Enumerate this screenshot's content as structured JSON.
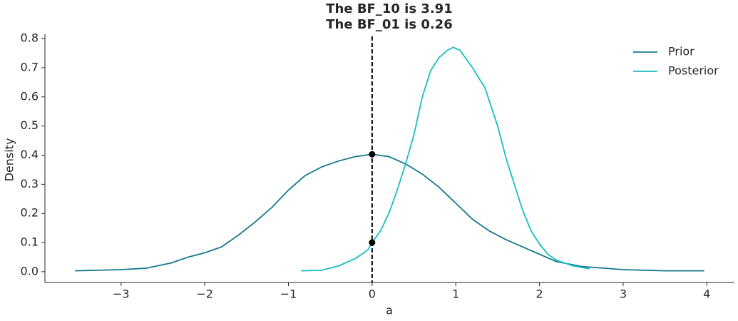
{
  "chart_data": {
    "type": "line",
    "title": [
      "The BF_10 is 3.91",
      "The BF_01 is 0.26"
    ],
    "xlabel": "a",
    "ylabel": "Density",
    "xlim": [
      -3.91,
      4.33
    ],
    "ylim": [
      -0.037,
      0.815
    ],
    "xticks": [
      {
        "value": -3,
        "label": "−3"
      },
      {
        "value": -2,
        "label": "−2"
      },
      {
        "value": -1,
        "label": "−1"
      },
      0,
      1,
      2,
      3,
      4
    ],
    "yticks": [
      {
        "value": 0,
        "label": "0.0"
      },
      0.1,
      0.2,
      0.3,
      0.4,
      0.5,
      0.6,
      0.7,
      0.8
    ],
    "legend": "upper right",
    "series": [
      {
        "name": "Prior",
        "color": "#15788c",
        "x": [
          -3.55,
          -3.0,
          -2.7,
          -2.4,
          -2.2,
          -2.0,
          -1.8,
          -1.6,
          -1.4,
          -1.2,
          -1.0,
          -0.8,
          -0.6,
          -0.4,
          -0.2,
          0.0,
          0.2,
          0.4,
          0.6,
          0.8,
          1.0,
          1.2,
          1.4,
          1.6,
          1.8,
          2.0,
          2.2,
          2.5,
          3.0,
          3.5,
          3.97
        ],
        "values": [
          0.003,
          0.007,
          0.012,
          0.03,
          0.05,
          0.065,
          0.085,
          0.125,
          0.17,
          0.22,
          0.28,
          0.33,
          0.36,
          0.38,
          0.395,
          0.403,
          0.395,
          0.37,
          0.335,
          0.29,
          0.235,
          0.18,
          0.14,
          0.11,
          0.085,
          0.06,
          0.035,
          0.018,
          0.007,
          0.003,
          0.003
        ]
      },
      {
        "name": "Posterior",
        "color": "#17bec4",
        "x": [
          -0.85,
          -0.6,
          -0.4,
          -0.2,
          -0.05,
          0.0,
          0.1,
          0.2,
          0.3,
          0.4,
          0.5,
          0.6,
          0.7,
          0.8,
          0.9,
          0.97,
          1.05,
          1.2,
          1.35,
          1.5,
          1.6,
          1.7,
          1.8,
          1.9,
          2.0,
          2.1,
          2.2,
          2.4,
          2.6
        ],
        "values": [
          0.003,
          0.005,
          0.02,
          0.045,
          0.075,
          0.1,
          0.14,
          0.2,
          0.28,
          0.37,
          0.47,
          0.6,
          0.69,
          0.735,
          0.76,
          0.77,
          0.76,
          0.7,
          0.63,
          0.5,
          0.39,
          0.3,
          0.21,
          0.14,
          0.095,
          0.06,
          0.04,
          0.02,
          0.01
        ]
      }
    ],
    "vline": 0,
    "points": {
      "color": "#000000",
      "x": [
        0,
        0
      ],
      "values": [
        0.403,
        0.1
      ]
    }
  }
}
